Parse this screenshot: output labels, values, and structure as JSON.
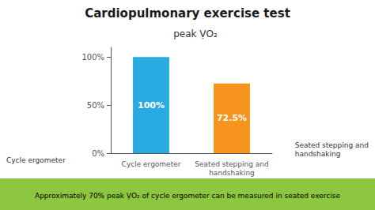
{
  "chart_data": {
    "type": "bar",
    "title": "Cardiopulmonary exercise test",
    "subtitle": "peak ṾO₂",
    "categories": [
      "Cycle ergometer",
      "Seated stepping and\nhandshaking"
    ],
    "values": [
      100,
      72.5
    ],
    "value_labels": [
      "100%",
      "72.5%"
    ],
    "data_labels": true,
    "colors": [
      "#29ABE2",
      "#F7941D"
    ],
    "ylim": [
      0,
      110
    ],
    "yticks": [
      {
        "value": 0,
        "label": "0%"
      },
      {
        "value": 50,
        "label": "50%"
      },
      {
        "value": 100,
        "label": "100%"
      }
    ],
    "grid": false,
    "annotations": [
      "Cycle ergometer",
      "Seated stepping and\nhandshaking"
    ],
    "banner": {
      "text": "Approximately 70% peak ṾO₂ of cycle ergometer can be measured in seated exercise",
      "color": "#8DC63F"
    }
  }
}
